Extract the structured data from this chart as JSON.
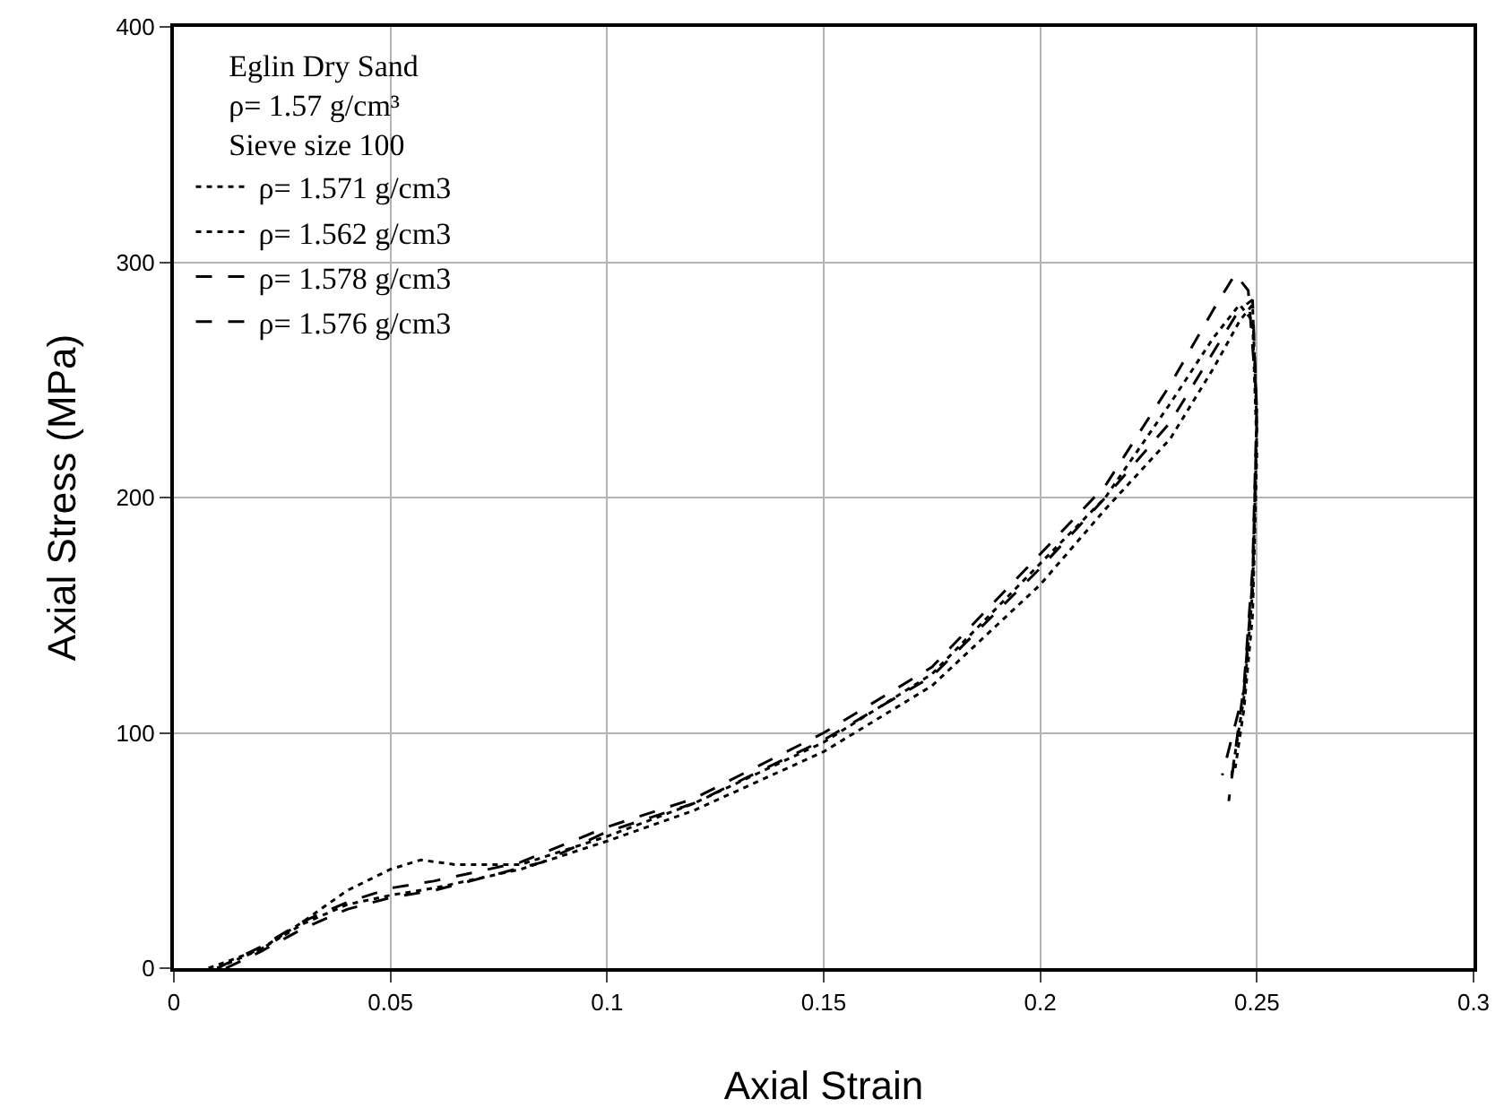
{
  "chart_data": {
    "type": "line",
    "xlabel": "Axial Strain",
    "ylabel": "Axial Stress (MPa)",
    "legend_title": "Eglin Dry Sand\nρ= 1.57 g/cm³\nSieve size 100",
    "xlim": [
      0,
      0.3
    ],
    "xticks": [
      0,
      0.05,
      0.1,
      0.15,
      0.2,
      0.25,
      0.3
    ],
    "ylim": [
      0,
      400
    ],
    "yticks": [
      0,
      100,
      200,
      300,
      400
    ],
    "grid": true,
    "legend": "top left",
    "marker": "none",
    "series": [
      {
        "name": "ρ= 1.571 g/cm3",
        "color": "#000000",
        "line_style": "dotted",
        "x": [
          0.008,
          0.02,
          0.03,
          0.04,
          0.05,
          0.057,
          0.065,
          0.08,
          0.1,
          0.12,
          0.15,
          0.175,
          0.2,
          0.215,
          0.23,
          0.24,
          0.246,
          0.249,
          0.25,
          0.249,
          0.247,
          0.245
        ],
        "values": [
          0,
          8,
          20,
          33,
          42,
          46,
          44,
          44,
          56,
          70,
          96,
          125,
          172,
          200,
          240,
          268,
          282,
          275,
          220,
          150,
          110,
          85
        ]
      },
      {
        "name": "ρ= 1.562 g/cm3",
        "color": "#000000",
        "line_style": "dotted",
        "x": [
          0.01,
          0.02,
          0.03,
          0.04,
          0.05,
          0.06,
          0.08,
          0.1,
          0.12,
          0.15,
          0.175,
          0.2,
          0.215,
          0.23,
          0.24,
          0.246,
          0.249,
          0.25,
          0.249,
          0.247,
          0.244
        ],
        "values": [
          0,
          8,
          19,
          27,
          31,
          34,
          42,
          54,
          67,
          92,
          120,
          163,
          195,
          225,
          255,
          275,
          282,
          230,
          160,
          115,
          80
        ]
      },
      {
        "name": "ρ= 1.578 g/cm3",
        "color": "#000000",
        "line_style": "dashed",
        "x": [
          0.01,
          0.02,
          0.03,
          0.04,
          0.05,
          0.06,
          0.08,
          0.1,
          0.12,
          0.15,
          0.175,
          0.2,
          0.215,
          0.23,
          0.24,
          0.245,
          0.248,
          0.25,
          0.249,
          0.247,
          0.2435
        ],
        "values": [
          0,
          9,
          20,
          28,
          34,
          37,
          45,
          60,
          72,
          100,
          128,
          176,
          205,
          248,
          280,
          295,
          288,
          240,
          170,
          120,
          71
        ]
      },
      {
        "name": "ρ= 1.576 g/cm3",
        "color": "#000000",
        "line_style": "dashed",
        "x": [
          0.012,
          0.02,
          0.03,
          0.04,
          0.05,
          0.06,
          0.085,
          0.1,
          0.12,
          0.15,
          0.175,
          0.2,
          0.215,
          0.23,
          0.24,
          0.246,
          0.249,
          0.25,
          0.249,
          0.247,
          0.242
        ],
        "values": [
          0,
          7,
          17,
          25,
          30,
          33,
          45,
          58,
          70,
          97,
          124,
          170,
          200,
          232,
          262,
          280,
          284,
          235,
          165,
          118,
          82
        ]
      }
    ]
  }
}
